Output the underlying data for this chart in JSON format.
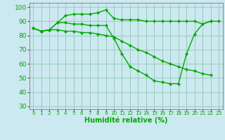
{
  "xlabel": "Humidité relative (%)",
  "background_color": "#cce8f0",
  "grid_color": "#99ccbb",
  "line_color": "#00aa00",
  "marker": "D",
  "markersize": 2.2,
  "linewidth": 1.0,
  "series": [
    [
      85,
      83,
      84,
      89,
      94,
      95,
      95,
      95,
      96,
      98,
      92,
      91,
      91,
      91,
      90,
      90,
      90,
      90,
      90,
      90,
      90,
      88,
      90,
      90
    ],
    [
      85,
      83,
      84,
      89,
      89,
      88,
      88,
      87,
      87,
      87,
      78,
      67,
      58,
      55,
      52,
      48,
      47,
      46,
      46,
      67,
      81,
      88,
      90,
      null
    ],
    [
      85,
      83,
      84,
      84,
      83,
      83,
      82,
      82,
      81,
      80,
      79,
      76,
      73,
      70,
      68,
      65,
      62,
      60,
      58,
      56,
      55,
      53,
      52,
      null
    ]
  ],
  "xlim": [
    -0.5,
    23.5
  ],
  "ylim": [
    28,
    103
  ],
  "yticks": [
    30,
    40,
    50,
    60,
    70,
    80,
    90,
    100
  ],
  "xticks": [
    0,
    1,
    2,
    3,
    4,
    5,
    6,
    7,
    8,
    9,
    10,
    11,
    12,
    13,
    14,
    15,
    16,
    17,
    18,
    19,
    20,
    21,
    22,
    23
  ],
  "xtick_labels": [
    "0",
    "1",
    "2",
    "3",
    "4",
    "5",
    "6",
    "7",
    "8",
    "9",
    "10",
    "11",
    "12",
    "13",
    "14",
    "15",
    "16",
    "17",
    "18",
    "19",
    "20",
    "21",
    "22",
    "23"
  ],
  "ytick_fontsize": 6.5,
  "xtick_fontsize": 5.2,
  "xlabel_fontsize": 7.0,
  "spine_color": "#888888"
}
